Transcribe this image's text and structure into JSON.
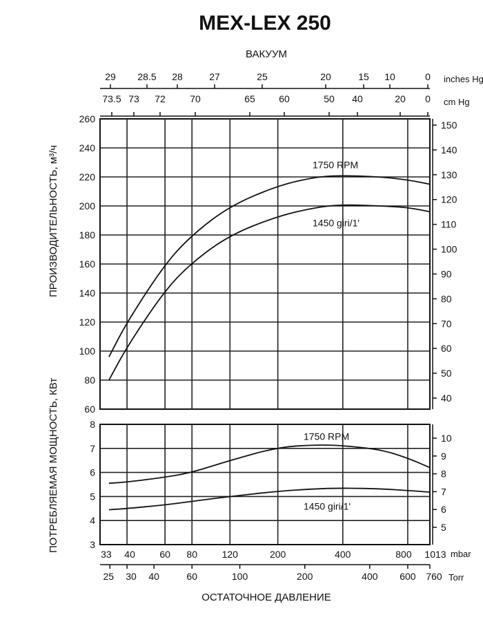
{
  "title": "MEX-LEX 250",
  "axes": {
    "top_title": "ВАКУУМ",
    "bottom_title": "ОСТАТОЧНОЕ ДАВЛЕНИЕ",
    "left_title_capacity": "ПРОИЗВОДИТЕЛЬНОСТЬ, м³/ч",
    "left_title_power": "ПОТРЕБЛЯЕМАЯ МОЩНОСТЬ, КВт",
    "inches_unit": "inches Hg",
    "cm_unit": "cm Hg",
    "mbar_unit": "mbar",
    "torr_unit": "Torr",
    "mbar_ticks": [
      "33",
      "40",
      "60",
      "80",
      "120",
      "200",
      "400",
      "800",
      "1013"
    ],
    "torr_ticks": [
      "25",
      "30",
      "40",
      "60",
      "100",
      "200",
      "400",
      "600",
      "760"
    ],
    "inches_ticks": [
      "29",
      "28.5",
      "28",
      "27",
      "25",
      "20",
      "15",
      "10",
      "0"
    ],
    "cm_ticks": [
      "73.5",
      "73",
      "72",
      "70",
      "65",
      "60",
      "50",
      "40",
      "20",
      "0"
    ],
    "capacity_left_ticks": [
      "60",
      "80",
      "100",
      "120",
      "140",
      "160",
      "180",
      "200",
      "220",
      "240",
      "260"
    ],
    "capacity_right_ticks": [
      "40",
      "50",
      "60",
      "70",
      "80",
      "90",
      "100",
      "110",
      "120",
      "130",
      "140",
      "150"
    ],
    "power_left_ticks": [
      "3",
      "4",
      "5",
      "6",
      "7",
      "8"
    ],
    "power_right_ticks": [
      "5",
      "6",
      "7",
      "8",
      "9",
      "10"
    ]
  },
  "chart_data": [
    {
      "type": "line",
      "title": "",
      "xlabel": "ОСТАТОЧНОЕ ДАВЛЕНИЕ",
      "ylabel": "ПРОИЗВОДИТЕЛЬНОСТЬ, м³/ч",
      "x_unit": "mbar",
      "x_scale": "log",
      "xlim": [
        30,
        1013
      ],
      "ylim": [
        60,
        260
      ],
      "grid": true,
      "series": [
        {
          "name": "1750 RPM",
          "x": [
            33,
            40,
            60,
            80,
            120,
            200,
            300,
            400,
            600,
            800,
            1013
          ],
          "y": [
            96,
            120,
            160,
            180,
            200,
            214,
            220,
            221,
            220,
            218,
            215
          ]
        },
        {
          "name": "1450 giri/1'",
          "x": [
            33,
            40,
            60,
            80,
            120,
            200,
            300,
            400,
            600,
            800,
            1013
          ],
          "y": [
            80,
            103,
            142,
            161,
            180,
            193,
            199,
            201,
            200,
            199,
            196
          ]
        }
      ]
    },
    {
      "type": "line",
      "title": "",
      "xlabel": "ОСТАТОЧНОЕ ДАВЛЕНИЕ",
      "ylabel": "ПОТРЕБЛЯЕМАЯ МОЩНОСТЬ, КВт",
      "x_unit": "mbar",
      "x_scale": "log",
      "xlim": [
        30,
        1013
      ],
      "ylim": [
        3,
        8
      ],
      "grid": true,
      "series": [
        {
          "name": "1750 RPM",
          "x": [
            33,
            40,
            60,
            80,
            120,
            200,
            300,
            400,
            600,
            800,
            1013
          ],
          "y": [
            5.55,
            5.6,
            5.8,
            6.0,
            6.5,
            7.05,
            7.15,
            7.12,
            6.95,
            6.6,
            6.2
          ]
        },
        {
          "name": "1450 giri/1'",
          "x": [
            33,
            40,
            60,
            80,
            120,
            200,
            300,
            400,
            600,
            800,
            1013
          ],
          "y": [
            4.45,
            4.5,
            4.65,
            4.8,
            5.0,
            5.22,
            5.32,
            5.35,
            5.32,
            5.25,
            5.18
          ]
        }
      ]
    }
  ]
}
